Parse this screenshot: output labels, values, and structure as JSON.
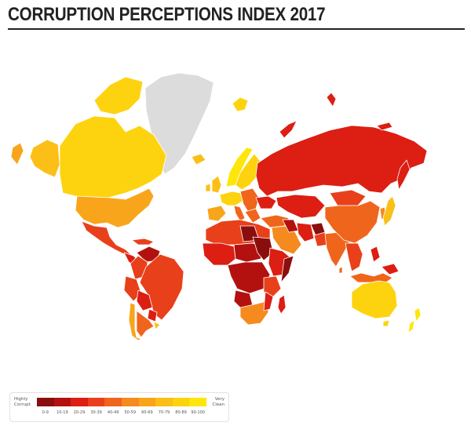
{
  "title": "CORRUPTION PERCEPTIONS INDEX 2017",
  "legend": {
    "left_label_1": "Highly",
    "left_label_2": "Corrupt",
    "right_label_1": "Very",
    "right_label_2": "Clean",
    "bins": [
      {
        "label": "0-9",
        "color": "#8b0e0e"
      },
      {
        "label": "10-19",
        "color": "#b3110f"
      },
      {
        "label": "20-29",
        "color": "#dc1e13"
      },
      {
        "label": "30-39",
        "color": "#e8401a"
      },
      {
        "label": "40-49",
        "color": "#f0651c"
      },
      {
        "label": "50-59",
        "color": "#f58a1f"
      },
      {
        "label": "60-69",
        "color": "#f8a51b"
      },
      {
        "label": "70-79",
        "color": "#fbbf17"
      },
      {
        "label": "80-89",
        "color": "#fdd30f"
      },
      {
        "label": "90-100",
        "color": "#fee60a"
      }
    ],
    "no_data_color": "#dcdcdc"
  }
}
